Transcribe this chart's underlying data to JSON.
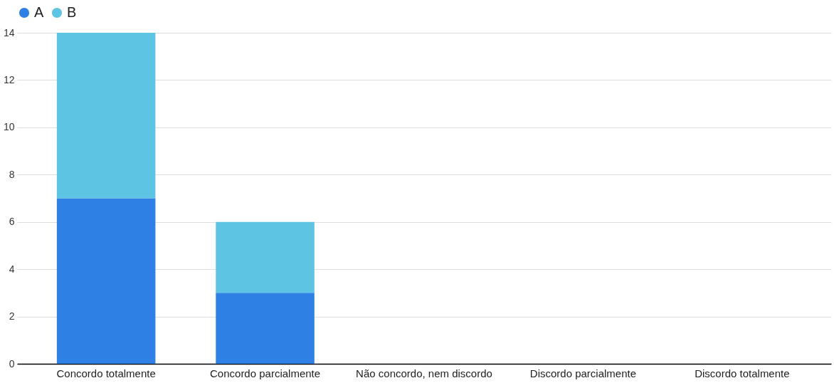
{
  "chart_data": {
    "type": "bar",
    "stacked": true,
    "categories": [
      "Concordo totalmente",
      "Concordo parcialmente",
      "Não concordo, nem discordo",
      "Discordo parcialmente",
      "Discordo totalmente"
    ],
    "series": [
      {
        "name": "A",
        "color": "#2e80e4",
        "values": [
          7,
          3,
          0,
          0,
          0
        ]
      },
      {
        "name": "B",
        "color": "#5ec4e4",
        "values": [
          7,
          3,
          0,
          0,
          0
        ]
      }
    ],
    "ylim": [
      0,
      14
    ],
    "yticks": [
      0,
      2,
      4,
      6,
      8,
      10,
      12,
      14
    ],
    "grid": "y",
    "legend": "top"
  }
}
